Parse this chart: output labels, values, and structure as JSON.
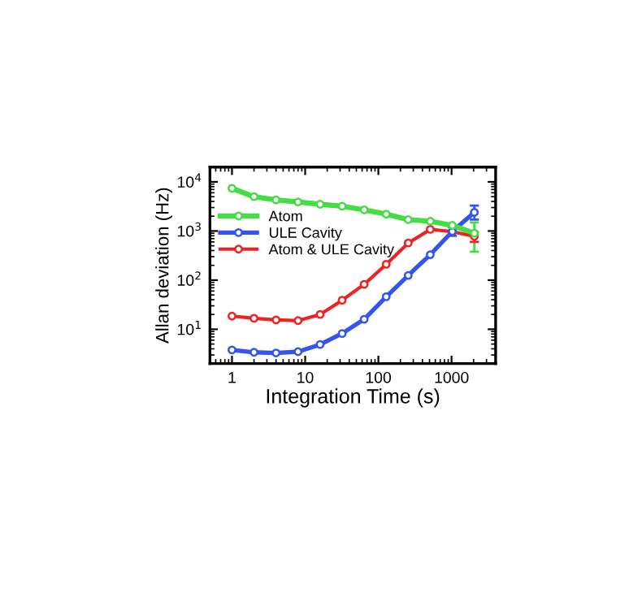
{
  "chart_data": {
    "type": "line",
    "xlabel": "Integration Time (s)",
    "ylabel": "Allan deviation (Hz)",
    "log": "xy",
    "marker": "circle",
    "line_style": "solid",
    "grid": false,
    "legend": "left",
    "x": [
      1,
      2,
      4,
      8,
      16,
      32,
      64,
      128,
      256,
      512,
      1024,
      2048
    ],
    "xlim": [
      0.5,
      4000
    ],
    "ylim": [
      2,
      20000
    ],
    "xticks": [
      1,
      10,
      100,
      1000
    ],
    "yticks": [
      {
        "value": 10,
        "label": "10$^{1}$"
      },
      {
        "value": 100,
        "label": "10$^{2}$"
      },
      {
        "value": 1000,
        "label": "10$^{3}$"
      },
      {
        "value": 10000,
        "label": "10$^{4}$"
      }
    ],
    "series": [
      {
        "name": "Atom",
        "color": "#44dd44",
        "values": [
          7400,
          5000,
          4300,
          3900,
          3500,
          3200,
          2700,
          2200,
          1700,
          1580,
          1300,
          900
        ],
        "errors": [
          null,
          null,
          null,
          null,
          null,
          null,
          null,
          null,
          null,
          null,
          null,
          [
            380,
            1500
          ]
        ]
      },
      {
        "name": "ULE Cavity",
        "color": "#3355ee",
        "values": [
          3.8,
          3.4,
          3.3,
          3.5,
          4.9,
          8.2,
          16,
          46,
          125,
          330,
          980,
          2400
        ],
        "errors": [
          null,
          null,
          null,
          null,
          null,
          null,
          null,
          null,
          null,
          null,
          [
            800,
            1200
          ],
          [
            1700,
            3300
          ]
        ]
      },
      {
        "name": "Atom & ULE Cavity",
        "color": "#ee2222",
        "values": [
          18.5,
          16.7,
          15.5,
          15,
          20,
          39,
          82,
          210,
          570,
          1080,
          970,
          780
        ],
        "errors": [
          null,
          null,
          null,
          null,
          null,
          null,
          null,
          null,
          null,
          null,
          null,
          [
            600,
            950
          ]
        ]
      }
    ]
  }
}
